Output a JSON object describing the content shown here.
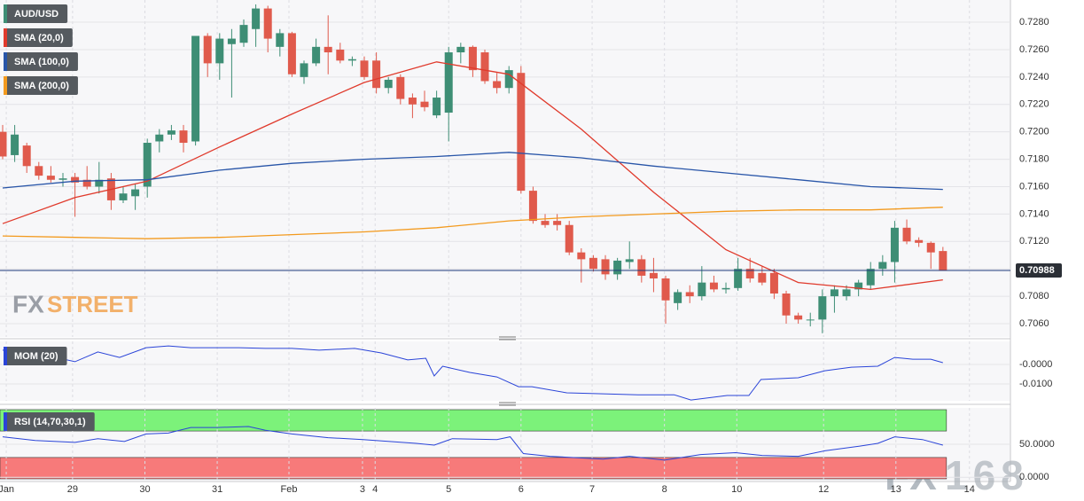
{
  "chart_data": [
    {
      "type": "candlestick",
      "series": [
        {
          "name": "AUD/USD",
          "up_color": "#3e8e75",
          "down_color": "#e05a4c",
          "open": [
            0.72,
            0.7183,
            0.719,
            0.7175,
            0.7168,
            0.7165,
            0.7167,
            0.7165,
            0.716,
            0.7166,
            0.715,
            0.7153,
            0.716,
            0.7193,
            0.7198,
            0.7201,
            0.7193,
            0.727,
            0.725,
            0.7264,
            0.7265,
            0.7275,
            0.729,
            0.7262,
            0.7272,
            0.724,
            0.725,
            0.7262,
            0.726,
            0.7252,
            0.7252,
            0.7252,
            0.7232,
            0.724,
            0.7225,
            0.7222,
            0.7212,
            0.7214,
            0.7258,
            0.7262,
            0.7258,
            0.7237,
            0.7232,
            0.7243,
            0.7157,
            0.7135,
            0.7135,
            0.7132,
            0.7112,
            0.7108,
            0.7107,
            0.7096,
            0.7105,
            0.7107,
            0.7097,
            0.7093,
            0.7075,
            0.7083,
            0.708,
            0.709,
            0.7085,
            0.7086,
            0.71,
            0.7097,
            0.7097,
            0.7082,
            0.7066,
            0.7063,
            0.7063,
            0.708,
            0.708,
            0.7085,
            0.7088,
            0.71,
            0.7105,
            0.713,
            0.7121,
            0.7119,
            0.7113
          ],
          "high": [
            0.7205,
            0.7205,
            0.7192,
            0.7178,
            0.7175,
            0.717,
            0.717,
            0.7175,
            0.7178,
            0.717,
            0.716,
            0.7162,
            0.7195,
            0.7202,
            0.7205,
            0.7205,
            0.727,
            0.7272,
            0.7272,
            0.7275,
            0.7282,
            0.7293,
            0.7292,
            0.7275,
            0.7273,
            0.7252,
            0.7268,
            0.7285,
            0.7265,
            0.7255,
            0.7255,
            0.7258,
            0.724,
            0.7242,
            0.7228,
            0.723,
            0.723,
            0.7262,
            0.7265,
            0.7263,
            0.726,
            0.7243,
            0.7248,
            0.7248,
            0.716,
            0.714,
            0.714,
            0.7135,
            0.7115,
            0.711,
            0.711,
            0.7108,
            0.712,
            0.711,
            0.7108,
            0.7095,
            0.7085,
            0.7088,
            0.7102,
            0.7095,
            0.709,
            0.7108,
            0.7108,
            0.7102,
            0.71,
            0.7084,
            0.7068,
            0.7068,
            0.7085,
            0.7088,
            0.7088,
            0.7092,
            0.7105,
            0.711,
            0.7135,
            0.7136,
            0.7123,
            0.712,
            0.7116
          ],
          "low": [
            0.718,
            0.7178,
            0.717,
            0.7165,
            0.7163,
            0.716,
            0.7138,
            0.7158,
            0.7155,
            0.7143,
            0.7148,
            0.7143,
            0.7152,
            0.7185,
            0.7194,
            0.7185,
            0.719,
            0.724,
            0.7238,
            0.7225,
            0.7262,
            0.7262,
            0.7258,
            0.7255,
            0.724,
            0.7235,
            0.7248,
            0.7242,
            0.725,
            0.7248,
            0.7238,
            0.7228,
            0.7228,
            0.722,
            0.721,
            0.7215,
            0.721,
            0.7193,
            0.725,
            0.724,
            0.7235,
            0.7228,
            0.7228,
            0.7155,
            0.7133,
            0.713,
            0.7128,
            0.711,
            0.709,
            0.7098,
            0.7092,
            0.7092,
            0.71,
            0.709,
            0.7083,
            0.706,
            0.707,
            0.7075,
            0.7077,
            0.7083,
            0.7082,
            0.7084,
            0.709,
            0.7088,
            0.7078,
            0.706,
            0.706,
            0.7058,
            0.7053,
            0.7068,
            0.7077,
            0.708,
            0.7085,
            0.7095,
            0.709,
            0.7118,
            0.7116,
            0.71,
            0.7099
          ],
          "close": [
            0.7182,
            0.7198,
            0.7175,
            0.7168,
            0.7165,
            0.7166,
            0.7163,
            0.716,
            0.7165,
            0.715,
            0.7155,
            0.7158,
            0.7192,
            0.7198,
            0.7201,
            0.7192,
            0.727,
            0.725,
            0.7268,
            0.7268,
            0.7278,
            0.729,
            0.7268,
            0.7272,
            0.7242,
            0.725,
            0.7262,
            0.7258,
            0.7252,
            0.7253,
            0.724,
            0.7232,
            0.7238,
            0.7224,
            0.722,
            0.7218,
            0.7225,
            0.7258,
            0.7262,
            0.7245,
            0.7237,
            0.7232,
            0.7245,
            0.7157,
            0.7135,
            0.7132,
            0.7132,
            0.7112,
            0.7107,
            0.71,
            0.7096,
            0.7106,
            0.7107,
            0.7095,
            0.7093,
            0.7077,
            0.7083,
            0.708,
            0.709,
            0.7085,
            0.7086,
            0.71,
            0.7093,
            0.709,
            0.7082,
            0.7066,
            0.7063,
            0.7063,
            0.708,
            0.7085,
            0.7085,
            0.709,
            0.71,
            0.7105,
            0.713,
            0.712,
            0.7119,
            0.7112,
            0.7099
          ]
        },
        {
          "name": "SMA (20,0)",
          "color": "#e03a2c",
          "x": [
            0,
            6,
            12,
            18,
            24,
            30,
            36,
            42,
            48,
            54,
            60,
            66,
            72,
            78
          ],
          "values": [
            0.7133,
            0.7152,
            0.7164,
            0.7189,
            0.7213,
            0.7236,
            0.7251,
            0.7242,
            0.7202,
            0.7156,
            0.7114,
            0.709,
            0.7085,
            0.7092
          ]
        },
        {
          "name": "SMA (100,0)",
          "color": "#2855a8",
          "x": [
            0,
            6,
            12,
            18,
            24,
            30,
            36,
            42,
            48,
            54,
            60,
            66,
            72,
            78
          ],
          "values": [
            0.7159,
            0.7164,
            0.7165,
            0.7172,
            0.7177,
            0.718,
            0.7182,
            0.7185,
            0.7181,
            0.7175,
            0.717,
            0.7165,
            0.716,
            0.7158
          ]
        },
        {
          "name": "SMA (200,0)",
          "color": "#f39a1e",
          "x": [
            0,
            6,
            12,
            18,
            24,
            30,
            36,
            42,
            48,
            54,
            60,
            66,
            72,
            78
          ],
          "values": [
            0.7124,
            0.7123,
            0.7122,
            0.7123,
            0.7125,
            0.7127,
            0.713,
            0.7135,
            0.7138,
            0.714,
            0.7142,
            0.7143,
            0.7143,
            0.7145
          ]
        }
      ],
      "xlim": [
        -0.22,
        83.6
      ],
      "xticks": [
        {
          "value": 0.3,
          "label": "Jan"
        },
        {
          "value": 5.8,
          "label": "29"
        },
        {
          "value": 11.8,
          "label": "30"
        },
        {
          "value": 17.8,
          "label": "31"
        },
        {
          "value": 23.75,
          "label": "Feb"
        },
        {
          "value": 29.85,
          "label": "3"
        },
        {
          "value": 30.9,
          "label": "4"
        },
        {
          "value": 37,
          "label": "5"
        },
        {
          "value": 43,
          "label": "6"
        },
        {
          "value": 48.9,
          "label": "7"
        },
        {
          "value": 54.9,
          "label": "8"
        },
        {
          "value": 60.9,
          "label": "10"
        },
        {
          "value": 68.1,
          "label": "12"
        },
        {
          "value": 74.1,
          "label": "13"
        },
        {
          "value": 80.2,
          "label": "14"
        }
      ],
      "ylim": [
        0.70503,
        0.72962
      ],
      "yticks": [
        {
          "value": 0.706,
          "label": "0.7060"
        },
        {
          "value": 0.708,
          "label": "0.7080"
        },
        {
          "value": 0.71,
          "label": "0.7100"
        },
        {
          "value": 0.712,
          "label": "0.7120"
        },
        {
          "value": 0.714,
          "label": "0.7140"
        },
        {
          "value": 0.716,
          "label": "0.7160"
        },
        {
          "value": 0.718,
          "label": "0.7180"
        },
        {
          "value": 0.72,
          "label": "0.7200"
        },
        {
          "value": 0.722,
          "label": "0.7220"
        },
        {
          "value": 0.724,
          "label": "0.7240"
        },
        {
          "value": 0.726,
          "label": "0.7260"
        },
        {
          "value": 0.728,
          "label": "0.7280"
        }
      ],
      "grid": true,
      "price_line": {
        "value": 0.70988,
        "label": "0.70988",
        "color": "#1e3a7a"
      },
      "logo": [
        "FX",
        "STREET"
      ],
      "watermark": [
        "FX",
        "168"
      ]
    },
    {
      "type": "line",
      "series": [
        {
          "name": "MOM (20)",
          "color": "#2a44d8",
          "x": [
            0,
            2.7,
            6,
            7.9,
            9.7,
            11.9,
            13.75,
            15.6,
            17.4,
            19.6,
            21.8,
            24,
            26.25,
            29.2,
            31.4,
            33.6,
            35.1,
            35.8,
            36.5,
            38.75,
            41,
            42.8,
            43.9,
            46.8,
            49.8,
            52.7,
            55.7,
            57.1,
            60.1,
            61.9,
            62.9,
            66,
            68.2,
            70.4,
            72.6,
            74,
            75.5,
            77,
            78
          ],
          "values": [
            0.0073,
            0.0059,
            0.0014,
            0.0064,
            0.0036,
            0.0086,
            0.0095,
            0.0086,
            0.0086,
            0.0086,
            0.0082,
            0.0082,
            0.0073,
            0.0082,
            0.0059,
            0.0023,
            0.0032,
            -0.0059,
            -0.0009,
            -0.0041,
            -0.0064,
            -0.0114,
            -0.0114,
            -0.0145,
            -0.015,
            -0.0155,
            -0.0155,
            -0.0182,
            -0.0159,
            -0.0159,
            -0.0077,
            -0.0068,
            -0.0032,
            -0.0014,
            -0.0009,
            0.0036,
            0.0027,
            0.0027,
            0.0009
          ]
        }
      ],
      "ylim": [
        -0.0186,
        0.0118
      ],
      "yticks": [
        {
          "value": 0,
          "label": "-0.0000"
        },
        {
          "value": -0.01,
          "label": "-0.0100"
        }
      ]
    },
    {
      "type": "line",
      "series": [
        {
          "name": "RSI (14,70,30,1)",
          "color": "#2a44d8",
          "x": [
            0,
            2.7,
            6,
            7.9,
            10.1,
            11.9,
            13.75,
            15.6,
            17.8,
            20.4,
            21.8,
            24,
            27,
            29.9,
            32.1,
            34.3,
            35.8,
            37.3,
            41,
            42.1,
            43.2,
            45.4,
            49.8,
            52,
            54.9,
            57.9,
            60.8,
            63,
            66,
            68.2,
            71.1,
            72.6,
            74,
            76.3,
            78
          ],
          "values": [
            61.3,
            55.6,
            52.8,
            58.5,
            54.2,
            65.5,
            66.9,
            75.4,
            75.4,
            76.8,
            71.2,
            65.5,
            59.9,
            57.1,
            54.2,
            51.4,
            48.6,
            58.5,
            57.1,
            61.3,
            35.9,
            31.7,
            27.4,
            31.7,
            26,
            34.5,
            37.3,
            33.1,
            31.7,
            40.1,
            47.2,
            51.4,
            61.3,
            57.1,
            48.6
          ]
        }
      ],
      "levels": [
        70,
        30
      ],
      "level_colors": [
        "#7cf27a",
        "#f77a7a"
      ],
      "ylim": [
        -5,
        105
      ],
      "yticks": [
        {
          "value": 50,
          "label": "50.0000"
        },
        {
          "value": 0,
          "label": "0.0000"
        }
      ]
    }
  ]
}
